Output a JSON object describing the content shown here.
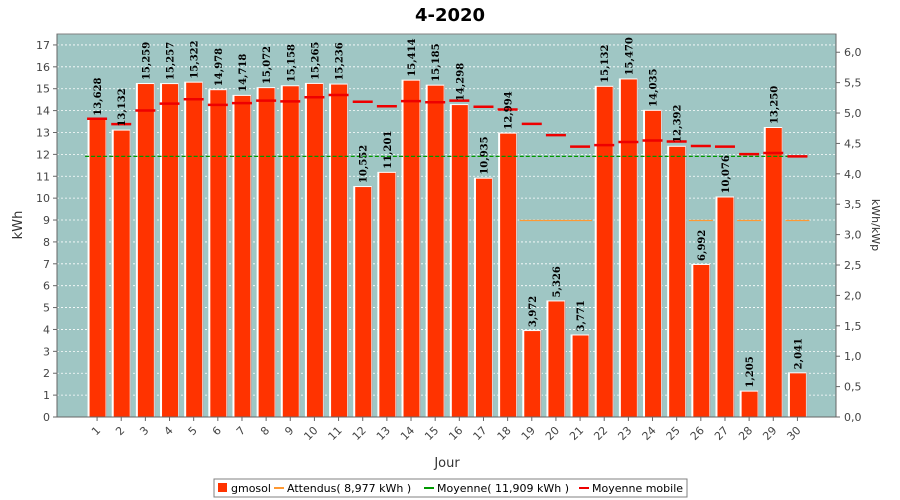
{
  "chart_data": {
    "type": "bar",
    "title": "4-2020",
    "xlabel": "Jour",
    "ylabel": "kWh",
    "y2label": "kWh/kWp",
    "ylim": [
      0,
      17.5
    ],
    "y2lim": [
      0,
      6.3
    ],
    "yticks": [
      "0",
      "1",
      "2",
      "3",
      "4",
      "5",
      "6",
      "7",
      "8",
      "9",
      "10",
      "11",
      "12",
      "13",
      "14",
      "15",
      "16",
      "17"
    ],
    "y2ticks": [
      "0,0",
      "0,5",
      "1,0",
      "1,5",
      "2,0",
      "2,5",
      "3,0",
      "3,5",
      "4,0",
      "4,5",
      "5,0",
      "5,5",
      "6,0"
    ],
    "categories": [
      "1",
      "2",
      "3",
      "4",
      "5",
      "6",
      "7",
      "8",
      "9",
      "10",
      "11",
      "12",
      "13",
      "14",
      "15",
      "16",
      "17",
      "18",
      "19",
      "20",
      "21",
      "22",
      "23",
      "24",
      "25",
      "26",
      "27",
      "28",
      "29",
      "30"
    ],
    "series": [
      {
        "name": "gmosol",
        "color": "#ff3300",
        "values": [
          13.628,
          13.132,
          15.259,
          15.257,
          15.322,
          14.978,
          14.718,
          15.072,
          15.158,
          15.265,
          15.236,
          10.552,
          11.201,
          15.414,
          15.185,
          14.298,
          10.935,
          12.994,
          3.972,
          5.326,
          3.771,
          15.132,
          15.47,
          14.035,
          12.392,
          6.992,
          10.076,
          1.205,
          13.25,
          2.041
        ],
        "labels": [
          "13,628",
          "13,132",
          "15,259",
          "15,257",
          "15,322",
          "14,978",
          "14,718",
          "15,072",
          "15,158",
          "15,265",
          "15,236",
          "10,552",
          "11,201",
          "15,414",
          "15,185",
          "14,298",
          "10,935",
          "12,994",
          "3,972",
          "5,326",
          "3,771",
          "15,132",
          "15,470",
          "14,035",
          "12,392",
          "6,992",
          "10,076",
          "1,205",
          "13,250",
          "2,041"
        ]
      },
      {
        "name": "Attendus( 8,977 kWh )",
        "color": "#ff9933",
        "values": [
          8.977,
          8.977,
          8.977,
          8.977,
          8.977,
          8.977,
          8.977,
          8.977,
          8.977,
          8.977,
          8.977,
          8.977,
          8.977,
          8.977,
          8.977,
          8.977,
          8.977,
          8.977,
          8.977,
          8.977,
          8.977,
          8.977,
          8.977,
          8.977,
          8.977,
          8.977,
          8.977,
          8.977,
          8.977,
          8.977
        ]
      },
      {
        "name": "Moyenne( 11,909 kWh )",
        "color": "#009900",
        "values": [
          11.909,
          11.909,
          11.909,
          11.909,
          11.909,
          11.909,
          11.909,
          11.909,
          11.909,
          11.909,
          11.909,
          11.909,
          11.909,
          11.909,
          11.909,
          11.909,
          11.909,
          11.909,
          11.909,
          11.909,
          11.909,
          11.909,
          11.909,
          11.909,
          11.909,
          11.909,
          11.909,
          11.909,
          11.909,
          11.909
        ]
      },
      {
        "name": "Moyenne mobile",
        "color": "#ee0000",
        "values": [
          13.628,
          13.38,
          14.006,
          14.319,
          14.52,
          14.263,
          14.343,
          14.453,
          14.423,
          14.609,
          14.715,
          14.405,
          14.201,
          14.432,
          14.381,
          14.458,
          14.175,
          14.049,
          13.393,
          12.877,
          12.354,
          12.423,
          12.563,
          12.634,
          12.589,
          12.383,
          12.355,
          12.011,
          12.061,
          11.909
        ]
      }
    ],
    "grid": true,
    "legend_position": "bottom"
  }
}
